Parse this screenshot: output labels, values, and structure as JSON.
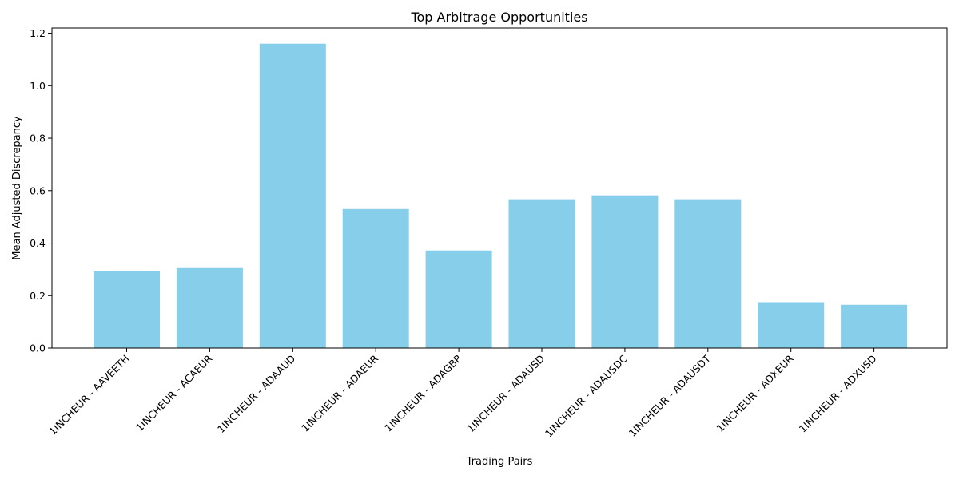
{
  "chart_data": {
    "type": "bar",
    "title": "Top Arbitrage Opportunities",
    "xlabel": "Trading Pairs",
    "ylabel": "Mean Adjusted Discrepancy",
    "categories": [
      "1INCHEUR - AAVEETH",
      "1INCHEUR - ACAEUR",
      "1INCHEUR - ADAAUD",
      "1INCHEUR - ADAEUR",
      "1INCHEUR - ADAGBP",
      "1INCHEUR - ADAUSD",
      "1INCHEUR - ADAUSDC",
      "1INCHEUR - ADAUSDT",
      "1INCHEUR - ADXEUR",
      "1INCHEUR - ADXUSD"
    ],
    "values": [
      0.295,
      0.305,
      1.16,
      0.53,
      0.372,
      0.567,
      0.582,
      0.567,
      0.175,
      0.165
    ],
    "ylim": [
      0,
      1.22
    ],
    "yticks": [
      "0.0",
      "0.2",
      "0.4",
      "0.6",
      "0.8",
      "1.0",
      "1.2"
    ],
    "bar_color": "#87CEEB",
    "grid": false,
    "legend": "none"
  }
}
